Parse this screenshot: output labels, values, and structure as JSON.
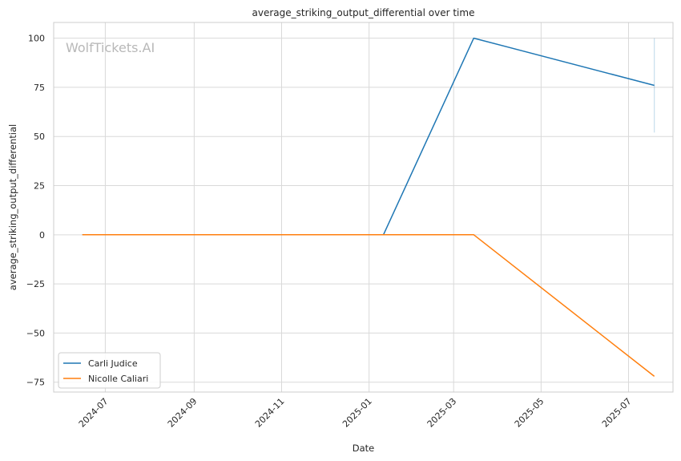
{
  "chart_data": {
    "type": "line",
    "title": "average_striking_output_differential over time",
    "xlabel": "Date",
    "ylabel": "average_striking_output_differential",
    "watermark": "WolfTickets.AI",
    "x_ticks": [
      "2024-07",
      "2024-09",
      "2024-11",
      "2025-01",
      "2025-03",
      "2025-05",
      "2025-07"
    ],
    "y_ticks": [
      100,
      75,
      50,
      25,
      0,
      -25,
      -50,
      -75
    ],
    "y_tick_labels": [
      "100",
      "75",
      "50",
      "25",
      "0",
      "−25",
      "−50",
      "−75"
    ],
    "xlim": [
      "2024-05-26",
      "2025-08-01"
    ],
    "ylim": [
      -80,
      108
    ],
    "grid": true,
    "legend_position": "lower-left",
    "series": [
      {
        "name": "Carli Judice",
        "color": "#1f77b4",
        "points": [
          {
            "x": "2024-06-15",
            "y": 0
          },
          {
            "x": "2025-01-11",
            "y": 0
          },
          {
            "x": "2025-03-15",
            "y": 100
          },
          {
            "x": "2025-07-19",
            "y": 76
          }
        ]
      },
      {
        "name": "Nicolle Caliari",
        "color": "#ff7f0e",
        "points": [
          {
            "x": "2024-06-15",
            "y": 0
          },
          {
            "x": "2025-03-15",
            "y": 0
          },
          {
            "x": "2025-07-19",
            "y": -72
          }
        ]
      }
    ],
    "band": {
      "x": "2025-07-19",
      "y_range": [
        52,
        100
      ],
      "color": "#1f77b4"
    }
  }
}
